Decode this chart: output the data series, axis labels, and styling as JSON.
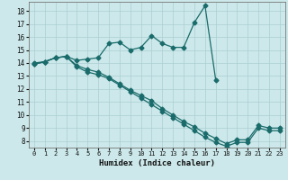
{
  "xlabel": "Humidex (Indice chaleur)",
  "bg_color": "#cce8ea",
  "grid_color": "#aacfd2",
  "line_color": "#1a6b6b",
  "xlim": [
    -0.5,
    23.5
  ],
  "ylim": [
    7.5,
    18.7
  ],
  "xticks": [
    0,
    1,
    2,
    3,
    4,
    5,
    6,
    7,
    8,
    9,
    10,
    11,
    12,
    13,
    14,
    15,
    16,
    17,
    18,
    19,
    20,
    21,
    22,
    23
  ],
  "yticks": [
    8,
    9,
    10,
    11,
    12,
    13,
    14,
    15,
    16,
    17,
    18
  ],
  "line1_x": [
    0,
    1,
    2,
    3,
    4,
    5,
    6,
    7,
    8,
    9,
    10,
    11,
    12,
    13,
    14,
    15,
    16,
    17
  ],
  "line1_y": [
    14.0,
    14.1,
    14.4,
    14.5,
    14.2,
    14.3,
    14.4,
    15.5,
    15.6,
    15.0,
    15.2,
    16.1,
    15.5,
    15.2,
    15.2,
    17.1,
    18.4,
    12.7
  ],
  "line2_x": [
    0,
    1,
    2,
    3,
    4,
    5,
    6,
    7,
    8,
    9,
    10,
    11,
    12,
    13,
    14,
    15,
    16,
    17,
    18,
    19,
    20,
    21,
    22,
    23
  ],
  "line2_y": [
    13.9,
    14.1,
    14.4,
    14.5,
    13.8,
    13.5,
    13.3,
    12.9,
    12.4,
    11.9,
    11.5,
    11.1,
    10.5,
    10.0,
    9.5,
    9.1,
    8.6,
    8.2,
    7.8,
    8.1,
    8.1,
    9.2,
    9.0,
    9.0
  ],
  "line3_x": [
    0,
    1,
    2,
    3,
    4,
    5,
    6,
    7,
    8,
    9,
    10,
    11,
    12,
    13,
    14,
    15,
    16,
    17,
    18,
    19,
    20,
    21,
    22,
    23
  ],
  "line3_y": [
    13.9,
    14.1,
    14.4,
    14.5,
    13.7,
    13.3,
    13.1,
    12.8,
    12.3,
    11.8,
    11.3,
    10.8,
    10.3,
    9.8,
    9.3,
    8.8,
    8.3,
    7.9,
    7.6,
    7.9,
    7.9,
    9.0,
    8.8,
    8.8
  ]
}
